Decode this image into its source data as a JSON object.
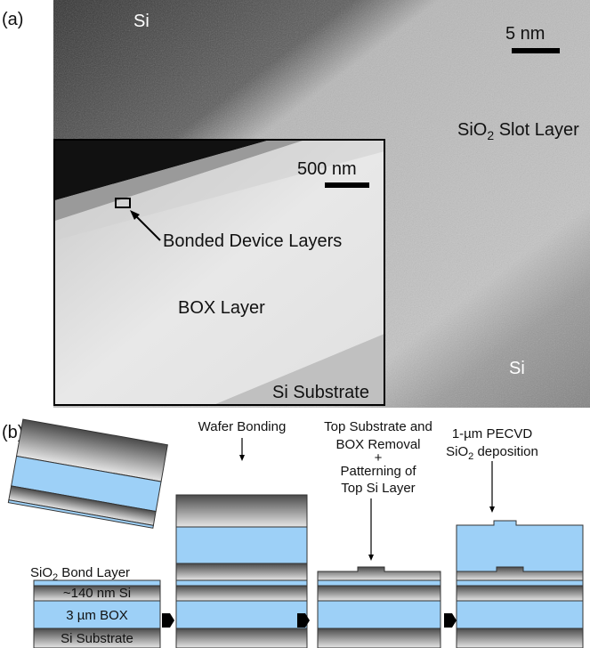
{
  "panel_a": {
    "label": "(a)",
    "si_top": "Si",
    "scale_5nm": "5 nm",
    "slot": {
      "main": "SiO",
      "sub": "2",
      "rest": " Slot Layer"
    },
    "si_bottom": "Si",
    "inset": {
      "scale": "500 nm",
      "bonded": "Bonded Device Layers",
      "box": "BOX Layer",
      "substrate": "Si Substrate"
    }
  },
  "panel_b": {
    "label": "(b)",
    "bond_layer": {
      "main": "SiO",
      "sub": "2",
      "rest": " Bond Layer"
    },
    "si_140": "~140 nm Si",
    "box": "3 µm BOX",
    "substrate": "Si Substrate",
    "step_bonding": "Wafer Bonding",
    "step_removal": [
      "Top Substrate and",
      "BOX Removal",
      "+",
      "Patterning of",
      "Top Si Layer"
    ],
    "step_pecvd": {
      "line1": "1-µm PECVD",
      "line2": {
        "main": "SiO",
        "sub": "2",
        "rest": " deposition"
      }
    }
  }
}
